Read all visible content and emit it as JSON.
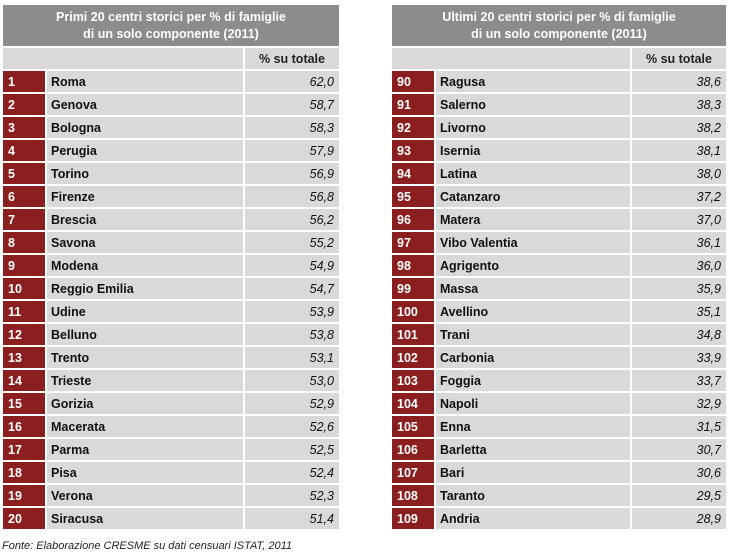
{
  "left_table": {
    "title_line1": "Primi 20 centri storici per % di famiglie",
    "title_line2": "di un solo componente (2011)",
    "column_header": "% su totale",
    "rows": [
      {
        "rank": "1",
        "city": "Roma",
        "value": "62,0"
      },
      {
        "rank": "2",
        "city": "Genova",
        "value": "58,7"
      },
      {
        "rank": "3",
        "city": "Bologna",
        "value": "58,3"
      },
      {
        "rank": "4",
        "city": "Perugia",
        "value": "57,9"
      },
      {
        "rank": "5",
        "city": "Torino",
        "value": "56,9"
      },
      {
        "rank": "6",
        "city": "Firenze",
        "value": "56,8"
      },
      {
        "rank": "7",
        "city": "Brescia",
        "value": "56,2"
      },
      {
        "rank": "8",
        "city": "Savona",
        "value": "55,2"
      },
      {
        "rank": "9",
        "city": "Modena",
        "value": "54,9"
      },
      {
        "rank": "10",
        "city": "Reggio Emilia",
        "value": "54,7"
      },
      {
        "rank": "11",
        "city": "Udine",
        "value": "53,9"
      },
      {
        "rank": "12",
        "city": "Belluno",
        "value": "53,8"
      },
      {
        "rank": "13",
        "city": "Trento",
        "value": "53,1"
      },
      {
        "rank": "14",
        "city": "Trieste",
        "value": "53,0"
      },
      {
        "rank": "15",
        "city": "Gorizia",
        "value": "52,9"
      },
      {
        "rank": "16",
        "city": "Macerata",
        "value": "52,6"
      },
      {
        "rank": "17",
        "city": "Parma",
        "value": "52,5"
      },
      {
        "rank": "18",
        "city": "Pisa",
        "value": "52,4"
      },
      {
        "rank": "19",
        "city": "Verona",
        "value": "52,3"
      },
      {
        "rank": "20",
        "city": "Siracusa",
        "value": "51,4"
      }
    ]
  },
  "right_table": {
    "title_line1": "Ultimi 20 centri storici per % di famiglie",
    "title_line2": "di un solo componente (2011)",
    "column_header": "% su totale",
    "rows": [
      {
        "rank": "90",
        "city": "Ragusa",
        "value": "38,6"
      },
      {
        "rank": "91",
        "city": "Salerno",
        "value": "38,3"
      },
      {
        "rank": "92",
        "city": "Livorno",
        "value": "38,2"
      },
      {
        "rank": "93",
        "city": "Isernia",
        "value": "38,1"
      },
      {
        "rank": "94",
        "city": "Latina",
        "value": "38,0"
      },
      {
        "rank": "95",
        "city": "Catanzaro",
        "value": "37,2"
      },
      {
        "rank": "96",
        "city": "Matera",
        "value": "37,0"
      },
      {
        "rank": "97",
        "city": "Vibo Valentia",
        "value": "36,1"
      },
      {
        "rank": "98",
        "city": "Agrigento",
        "value": "36,0"
      },
      {
        "rank": "99",
        "city": "Massa",
        "value": "35,9"
      },
      {
        "rank": "100",
        "city": "Avellino",
        "value": "35,1"
      },
      {
        "rank": "101",
        "city": "Trani",
        "value": "34,8"
      },
      {
        "rank": "102",
        "city": "Carbonia",
        "value": "33,9"
      },
      {
        "rank": "103",
        "city": "Foggia",
        "value": "33,7"
      },
      {
        "rank": "104",
        "city": "Napoli",
        "value": "32,9"
      },
      {
        "rank": "105",
        "city": "Enna",
        "value": "31,5"
      },
      {
        "rank": "106",
        "city": "Barletta",
        "value": "30,7"
      },
      {
        "rank": "107",
        "city": "Bari",
        "value": "30,6"
      },
      {
        "rank": "108",
        "city": "Taranto",
        "value": "29,5"
      },
      {
        "rank": "109",
        "city": "Andria",
        "value": "28,9"
      }
    ]
  },
  "source": "Fonte: Elaborazione  CRESME su dati censuari ISTAT,  2011",
  "colors": {
    "rank_cell": "#8b1e1e",
    "title_bg": "#8c8c8c",
    "row_bg": "#d9d9d9"
  }
}
